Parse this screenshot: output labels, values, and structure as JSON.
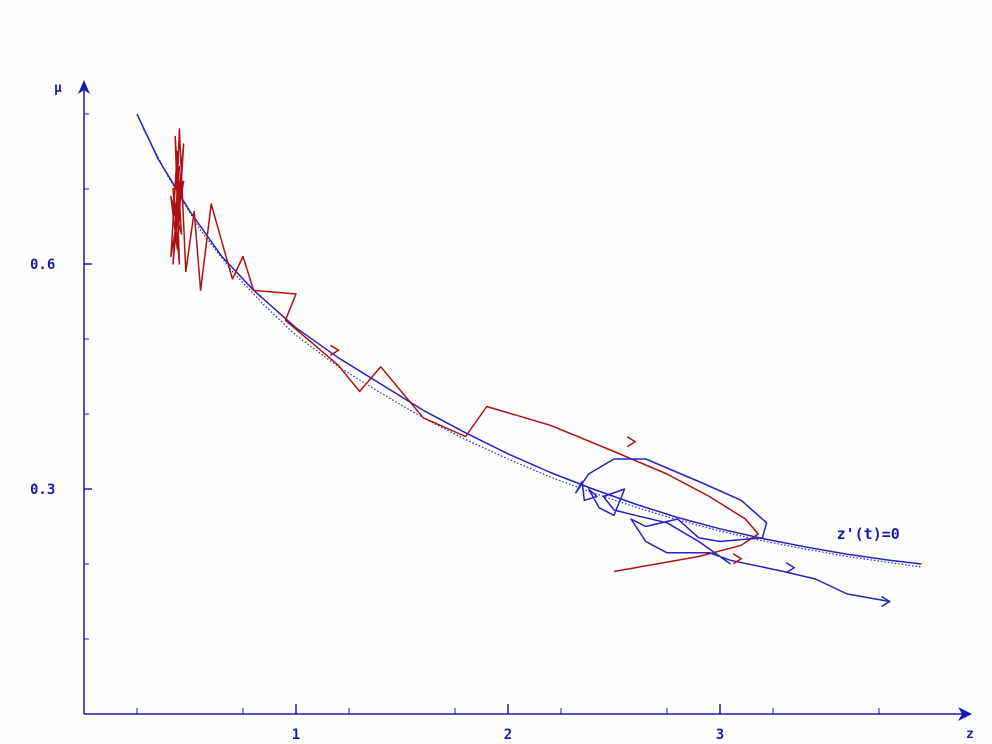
{
  "chart_data": {
    "type": "line",
    "xlabel": "z",
    "ylabel": "μ",
    "xlim": [
      0,
      4.2
    ],
    "ylim": [
      0,
      0.8
    ],
    "x_ticks": [
      1,
      2,
      3
    ],
    "y_ticks": [
      0.3,
      0.6
    ],
    "x_tick_labels": [
      "1",
      "2",
      "3"
    ],
    "y_tick_labels": [
      "0.3",
      "0.6"
    ],
    "grid": false,
    "colors": {
      "axis": "#1a1ab0",
      "blue_curve": "#2323c0",
      "red_trajectory": "#b01010"
    },
    "annotations": [
      {
        "text": "z'(t)=0",
        "x": 3.55,
        "y": 0.24
      }
    ],
    "series": [
      {
        "style": "solid",
        "color": "#2323c0",
        "points": [
          [
            0.25,
            0.8
          ],
          [
            0.35,
            0.74
          ],
          [
            0.5,
            0.67
          ],
          [
            0.65,
            0.61
          ],
          [
            0.8,
            0.565
          ],
          [
            1.0,
            0.515
          ],
          [
            1.2,
            0.475
          ],
          [
            1.4,
            0.44
          ],
          [
            1.6,
            0.405
          ],
          [
            1.8,
            0.375
          ],
          [
            2.0,
            0.347
          ],
          [
            2.2,
            0.322
          ],
          [
            2.4,
            0.3
          ],
          [
            2.6,
            0.28
          ],
          [
            2.8,
            0.262
          ],
          [
            3.0,
            0.247
          ],
          [
            3.2,
            0.234
          ],
          [
            3.4,
            0.223
          ],
          [
            3.6,
            0.213
          ],
          [
            3.8,
            0.205
          ],
          [
            3.95,
            0.2
          ]
        ]
      },
      {
        "style": "dotted",
        "color": "#2323c0",
        "points": [
          [
            0.28,
            0.78
          ],
          [
            0.4,
            0.715
          ],
          [
            0.55,
            0.645
          ],
          [
            0.7,
            0.59
          ],
          [
            0.85,
            0.545
          ],
          [
            1.0,
            0.505
          ],
          [
            1.2,
            0.463
          ],
          [
            1.4,
            0.428
          ],
          [
            1.6,
            0.395
          ],
          [
            1.8,
            0.366
          ],
          [
            2.0,
            0.34
          ],
          [
            2.2,
            0.316
          ],
          [
            2.4,
            0.295
          ],
          [
            2.6,
            0.276
          ],
          [
            2.8,
            0.259
          ],
          [
            3.0,
            0.244
          ],
          [
            3.2,
            0.231
          ],
          [
            3.4,
            0.22
          ],
          [
            3.6,
            0.21
          ],
          [
            3.8,
            0.202
          ],
          [
            3.95,
            0.196
          ]
        ]
      },
      {
        "style": "solid",
        "color": "#b01010",
        "points": [
          [
            2.5,
            0.19
          ],
          [
            2.9,
            0.21
          ],
          [
            3.1,
            0.225
          ],
          [
            3.18,
            0.24
          ],
          [
            3.12,
            0.26
          ],
          [
            2.95,
            0.29
          ],
          [
            2.75,
            0.32
          ],
          [
            2.5,
            0.35
          ],
          [
            2.2,
            0.385
          ],
          [
            1.9,
            0.41
          ],
          [
            1.8,
            0.37
          ],
          [
            1.6,
            0.395
          ],
          [
            1.4,
            0.463
          ],
          [
            1.3,
            0.43
          ],
          [
            1.2,
            0.465
          ],
          [
            0.95,
            0.525
          ],
          [
            1.0,
            0.56
          ],
          [
            0.8,
            0.565
          ],
          [
            0.75,
            0.61
          ],
          [
            0.7,
            0.58
          ],
          [
            0.6,
            0.68
          ],
          [
            0.55,
            0.565
          ],
          [
            0.52,
            0.67
          ],
          [
            0.48,
            0.59
          ],
          [
            0.45,
            0.78
          ],
          [
            0.43,
            0.63
          ],
          [
            0.46,
            0.72
          ],
          [
            0.42,
            0.66
          ],
          [
            0.44,
            0.75
          ],
          [
            0.41,
            0.61
          ],
          [
            0.47,
            0.71
          ],
          [
            0.42,
            0.7
          ],
          [
            0.45,
            0.6
          ],
          [
            0.43,
            0.77
          ],
          [
            0.46,
            0.64
          ],
          [
            0.41,
            0.69
          ],
          [
            0.44,
            0.62
          ],
          [
            0.47,
            0.76
          ],
          [
            0.42,
            0.6
          ],
          [
            0.45,
            0.73
          ],
          [
            0.43,
            0.65
          ]
        ]
      },
      {
        "style": "solid",
        "color": "#2323c0",
        "points": [
          [
            3.05,
            0.2
          ],
          [
            2.9,
            0.23
          ],
          [
            2.75,
            0.255
          ],
          [
            2.6,
            0.265
          ],
          [
            2.5,
            0.272
          ],
          [
            2.45,
            0.29
          ],
          [
            2.55,
            0.3
          ],
          [
            2.5,
            0.265
          ],
          [
            2.43,
            0.275
          ],
          [
            2.38,
            0.3
          ],
          [
            2.42,
            0.29
          ],
          [
            2.36,
            0.285
          ],
          [
            2.35,
            0.31
          ],
          [
            2.32,
            0.295
          ],
          [
            2.38,
            0.32
          ],
          [
            2.5,
            0.34
          ],
          [
            2.65,
            0.34
          ],
          [
            2.9,
            0.31
          ],
          [
            3.1,
            0.285
          ],
          [
            3.22,
            0.255
          ],
          [
            3.2,
            0.235
          ],
          [
            3.0,
            0.23
          ],
          [
            2.9,
            0.235
          ],
          [
            2.8,
            0.26
          ],
          [
            2.65,
            0.25
          ],
          [
            2.58,
            0.26
          ],
          [
            2.65,
            0.23
          ],
          [
            2.75,
            0.215
          ],
          [
            2.95,
            0.215
          ],
          [
            3.05,
            0.205
          ],
          [
            3.3,
            0.19
          ],
          [
            3.45,
            0.18
          ],
          [
            3.6,
            0.16
          ],
          [
            3.8,
            0.15
          ]
        ]
      }
    ],
    "arrows": [
      {
        "x": 1.2,
        "y": 0.485,
        "color": "#b01010"
      },
      {
        "x": 2.6,
        "y": 0.363,
        "color": "#b01010"
      },
      {
        "x": 3.35,
        "y": 0.195,
        "color": "#2323c0"
      },
      {
        "x": 3.8,
        "y": 0.15,
        "color": "#2323c0"
      },
      {
        "x": 3.1,
        "y": 0.207,
        "color": "#b01010"
      }
    ]
  }
}
